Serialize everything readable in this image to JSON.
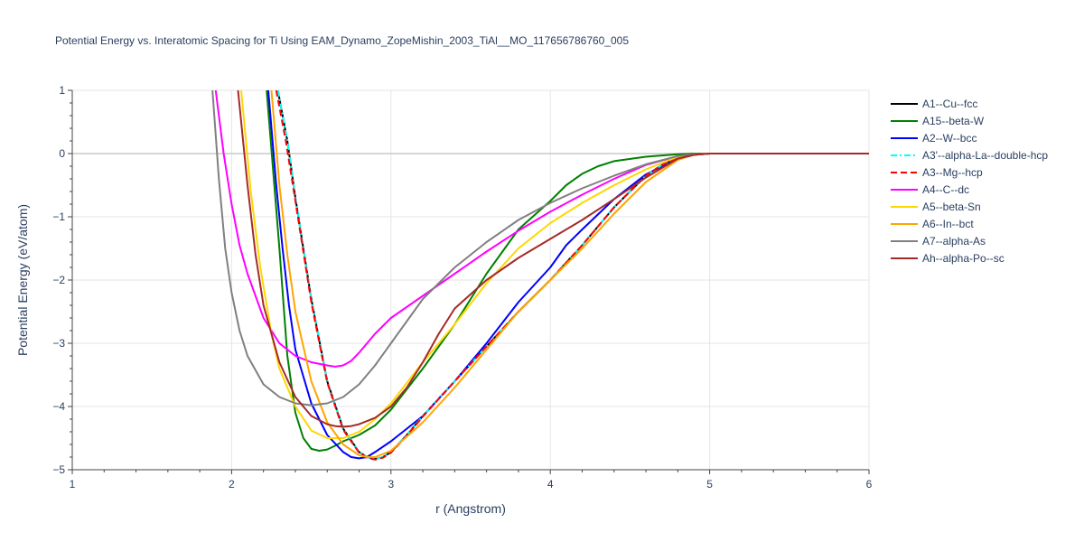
{
  "chart_data": {
    "type": "line",
    "title": "Potential Energy vs. Interatomic Spacing for Ti Using EAM_Dynamo_ZopeMishin_2003_TiAl__MO_117656786760_005",
    "xlabel": "r (Angstrom)",
    "ylabel": "Potential Energy (eV/atom)",
    "xlim": [
      1,
      6
    ],
    "ylim": [
      -5,
      1
    ],
    "xticks": [
      1,
      2,
      3,
      4,
      5,
      6
    ],
    "yticks": [
      -5,
      -4,
      -3,
      -2,
      -1,
      0,
      1
    ],
    "grid": true,
    "legend_position": "right",
    "series": [
      {
        "name": "A1--Cu--fcc",
        "color": "#000000",
        "dash": "solid",
        "x": [
          2.29,
          2.35,
          2.4,
          2.5,
          2.6,
          2.7,
          2.8,
          2.85,
          2.9,
          2.95,
          3.0,
          3.1,
          3.2,
          3.4,
          3.6,
          3.8,
          4.0,
          4.2,
          4.4,
          4.6,
          4.7,
          4.8,
          4.9,
          5.0,
          5.2,
          5.6,
          6.0
        ],
        "y": [
          1.0,
          0.2,
          -0.7,
          -2.3,
          -3.6,
          -4.35,
          -4.72,
          -4.8,
          -4.83,
          -4.8,
          -4.72,
          -4.45,
          -4.15,
          -3.6,
          -3.05,
          -2.5,
          -2.0,
          -1.45,
          -0.85,
          -0.35,
          -0.18,
          -0.07,
          -0.02,
          0.0,
          0.0,
          0.0,
          0.0
        ]
      },
      {
        "name": "A15--beta-W",
        "color": "#008000",
        "dash": "solid",
        "x": [
          2.22,
          2.3,
          2.35,
          2.4,
          2.45,
          2.5,
          2.55,
          2.6,
          2.65,
          2.7,
          2.8,
          2.9,
          3.0,
          3.2,
          3.4,
          3.6,
          3.8,
          4.0,
          4.1,
          4.2,
          4.3,
          4.4,
          4.6,
          4.8,
          4.9,
          5.0,
          5.5,
          6.0
        ],
        "y": [
          1.0,
          -1.5,
          -3.2,
          -4.1,
          -4.5,
          -4.67,
          -4.7,
          -4.68,
          -4.62,
          -4.55,
          -4.45,
          -4.3,
          -4.05,
          -3.4,
          -2.7,
          -1.9,
          -1.2,
          -0.75,
          -0.5,
          -0.32,
          -0.2,
          -0.12,
          -0.05,
          -0.01,
          0.0,
          0.0,
          0.0,
          0.0
        ]
      },
      {
        "name": "A2--W--bcc",
        "color": "#0000ff",
        "dash": "solid",
        "x": [
          2.23,
          2.28,
          2.32,
          2.36,
          2.4,
          2.5,
          2.6,
          2.7,
          2.75,
          2.8,
          2.85,
          2.9,
          3.0,
          3.2,
          3.4,
          3.6,
          3.8,
          4.0,
          4.1,
          4.2,
          4.4,
          4.6,
          4.8,
          4.9,
          5.0,
          5.5,
          6.0
        ],
        "y": [
          1.0,
          -0.5,
          -1.5,
          -2.4,
          -3.1,
          -3.95,
          -4.45,
          -4.72,
          -4.8,
          -4.82,
          -4.8,
          -4.72,
          -4.55,
          -4.15,
          -3.6,
          -3.0,
          -2.35,
          -1.8,
          -1.45,
          -1.2,
          -0.72,
          -0.33,
          -0.08,
          -0.02,
          0.0,
          0.0,
          0.0
        ]
      },
      {
        "name": "A3'--alpha-La--double-hcp",
        "color": "#00ffff",
        "dash": "dashdot",
        "x": [
          2.29,
          2.35,
          2.4,
          2.5,
          2.6,
          2.7,
          2.8,
          2.85,
          2.9,
          2.95,
          3.0,
          3.1,
          3.2,
          3.4,
          3.6,
          3.8,
          4.0,
          4.2,
          4.4,
          4.6,
          4.7,
          4.8,
          4.9,
          5.0,
          5.2,
          5.6,
          6.0
        ],
        "y": [
          1.0,
          0.2,
          -0.7,
          -2.3,
          -3.6,
          -4.35,
          -4.72,
          -4.8,
          -4.83,
          -4.8,
          -4.72,
          -4.45,
          -4.15,
          -3.6,
          -3.05,
          -2.5,
          -2.0,
          -1.45,
          -0.85,
          -0.35,
          -0.18,
          -0.07,
          -0.02,
          0.0,
          0.0,
          0.0,
          0.0
        ]
      },
      {
        "name": "A3--Mg--hcp",
        "color": "#ff0000",
        "dash": "dash",
        "x": [
          2.28,
          2.34,
          2.4,
          2.5,
          2.6,
          2.7,
          2.8,
          2.85,
          2.9,
          2.95,
          3.0,
          3.1,
          3.2,
          3.4,
          3.6,
          3.8,
          4.0,
          4.2,
          4.4,
          4.6,
          4.7,
          4.8,
          4.9,
          5.0,
          5.2,
          5.6,
          6.0
        ],
        "y": [
          1.0,
          0.2,
          -0.75,
          -2.35,
          -3.62,
          -4.37,
          -4.73,
          -4.81,
          -4.84,
          -4.81,
          -4.73,
          -4.46,
          -4.16,
          -3.6,
          -3.05,
          -2.5,
          -2.0,
          -1.45,
          -0.85,
          -0.35,
          -0.18,
          -0.07,
          -0.02,
          0.0,
          0.0,
          0.0,
          0.0
        ]
      },
      {
        "name": "A4--C--dc",
        "color": "#ff00ff",
        "dash": "solid",
        "x": [
          1.9,
          1.95,
          2.0,
          2.05,
          2.1,
          2.2,
          2.3,
          2.4,
          2.5,
          2.6,
          2.65,
          2.7,
          2.75,
          2.8,
          2.9,
          3.0,
          3.2,
          3.4,
          3.6,
          3.8,
          4.0,
          4.2,
          4.4,
          4.6,
          4.8,
          4.9,
          5.0,
          5.5,
          6.0
        ],
        "y": [
          1.0,
          0.0,
          -0.8,
          -1.45,
          -1.9,
          -2.6,
          -3.0,
          -3.2,
          -3.3,
          -3.35,
          -3.37,
          -3.35,
          -3.28,
          -3.15,
          -2.85,
          -2.6,
          -2.25,
          -1.9,
          -1.55,
          -1.22,
          -0.92,
          -0.65,
          -0.4,
          -0.18,
          -0.04,
          -0.01,
          0.0,
          0.0,
          0.0
        ]
      },
      {
        "name": "A5--beta-Sn",
        "color": "#ffd700",
        "dash": "solid",
        "x": [
          2.06,
          2.12,
          2.18,
          2.25,
          2.3,
          2.4,
          2.5,
          2.6,
          2.7,
          2.8,
          2.9,
          3.0,
          3.2,
          3.4,
          3.6,
          3.8,
          4.0,
          4.2,
          4.4,
          4.6,
          4.8,
          4.9,
          5.0,
          5.5,
          6.0
        ],
        "y": [
          1.0,
          -0.6,
          -1.8,
          -2.85,
          -3.4,
          -4.0,
          -4.38,
          -4.5,
          -4.5,
          -4.4,
          -4.2,
          -3.95,
          -3.3,
          -2.7,
          -2.05,
          -1.5,
          -1.1,
          -0.78,
          -0.5,
          -0.25,
          -0.05,
          -0.01,
          0.0,
          0.0,
          0.0
        ]
      },
      {
        "name": "A6--In--bct",
        "color": "#ffa500",
        "dash": "solid",
        "x": [
          2.25,
          2.3,
          2.35,
          2.4,
          2.5,
          2.6,
          2.7,
          2.8,
          2.85,
          2.9,
          3.0,
          3.2,
          3.4,
          3.6,
          3.8,
          4.0,
          4.2,
          4.4,
          4.6,
          4.8,
          4.9,
          5.0,
          5.5,
          6.0
        ],
        "y": [
          1.0,
          -0.5,
          -1.6,
          -2.5,
          -3.6,
          -4.25,
          -4.6,
          -4.77,
          -4.8,
          -4.8,
          -4.7,
          -4.25,
          -3.7,
          -3.1,
          -2.5,
          -2.0,
          -1.5,
          -0.95,
          -0.45,
          -0.1,
          -0.02,
          0.0,
          0.0,
          0.0
        ]
      },
      {
        "name": "A7--alpha-As",
        "color": "#808080",
        "dash": "solid",
        "x": [
          1.88,
          1.92,
          1.96,
          2.0,
          2.05,
          2.1,
          2.2,
          2.3,
          2.4,
          2.5,
          2.6,
          2.7,
          2.8,
          2.9,
          3.0,
          3.2,
          3.4,
          3.6,
          3.8,
          4.0,
          4.2,
          4.4,
          4.6,
          4.8,
          4.9,
          5.0,
          5.5,
          6.0
        ],
        "y": [
          1.0,
          -0.4,
          -1.5,
          -2.2,
          -2.8,
          -3.2,
          -3.65,
          -3.85,
          -3.95,
          -3.98,
          -3.95,
          -3.85,
          -3.65,
          -3.35,
          -3.0,
          -2.3,
          -1.8,
          -1.4,
          -1.05,
          -0.78,
          -0.55,
          -0.35,
          -0.17,
          -0.04,
          -0.01,
          0.0,
          0.0,
          0.0
        ]
      },
      {
        "name": "Ah--alpha-Po--sc",
        "color": "#a52a2a",
        "dash": "solid",
        "x": [
          2.04,
          2.1,
          2.15,
          2.2,
          2.3,
          2.4,
          2.5,
          2.6,
          2.65,
          2.7,
          2.75,
          2.8,
          2.9,
          3.0,
          3.1,
          3.2,
          3.3,
          3.4,
          3.6,
          3.8,
          4.0,
          4.2,
          4.4,
          4.6,
          4.8,
          4.9,
          5.0,
          5.5,
          6.0
        ],
        "y": [
          1.0,
          -0.5,
          -1.6,
          -2.4,
          -3.3,
          -3.85,
          -4.15,
          -4.28,
          -4.31,
          -4.32,
          -4.31,
          -4.28,
          -4.18,
          -4.0,
          -3.7,
          -3.3,
          -2.85,
          -2.45,
          -2.0,
          -1.65,
          -1.35,
          -1.05,
          -0.72,
          -0.38,
          -0.08,
          -0.02,
          0.0,
          0.0,
          0.0
        ]
      }
    ]
  }
}
